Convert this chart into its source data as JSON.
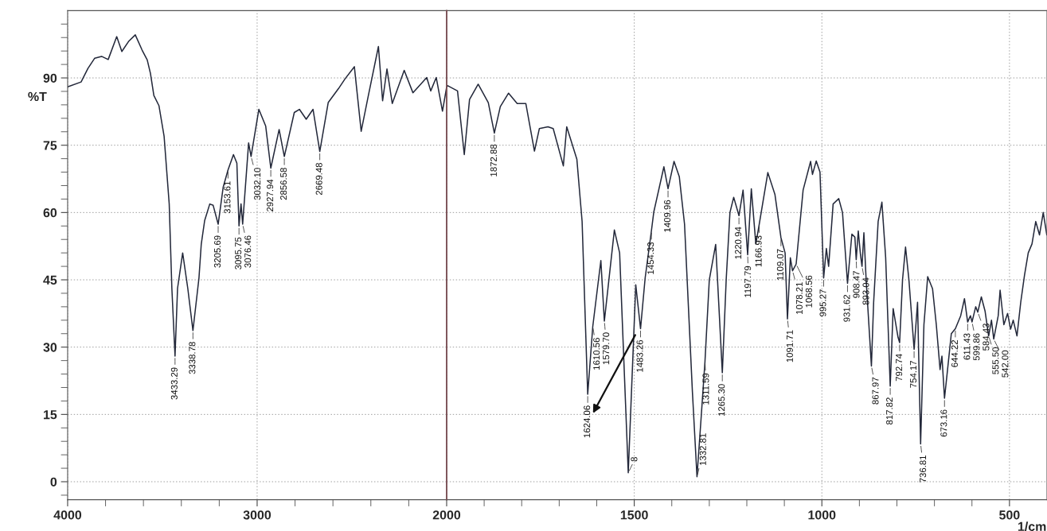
{
  "chart_data": [
    {
      "type": "line",
      "ylabel": "%T",
      "xlim": [
        4000,
        2000
      ],
      "ylim": [
        -4,
        105
      ],
      "xticks": [
        4000,
        {
          "value": 3800,
          "label": null
        },
        {
          "value": 3600,
          "label": null
        },
        {
          "value": 3400,
          "label": null
        },
        {
          "value": 3200,
          "label": null
        },
        3000,
        {
          "value": 2800,
          "label": null
        },
        {
          "value": 2600,
          "label": null
        },
        {
          "value": 2400,
          "label": null
        },
        {
          "value": 2200,
          "label": null
        }
      ],
      "yticks": [
        {
          "value": -3,
          "label": null
        },
        0,
        {
          "value": 3,
          "label": null
        },
        {
          "value": 6,
          "label": null
        },
        {
          "value": 9,
          "label": null
        },
        {
          "value": 12,
          "label": null
        },
        15,
        {
          "value": 18,
          "label": null
        },
        {
          "value": 21,
          "label": null
        },
        {
          "value": 24,
          "label": null
        },
        {
          "value": 27,
          "label": null
        },
        30,
        {
          "value": 33,
          "label": null
        },
        {
          "value": 36,
          "label": null
        },
        {
          "value": 39,
          "label": null
        },
        {
          "value": 42,
          "label": null
        },
        45,
        {
          "value": 48,
          "label": null
        },
        {
          "value": 51,
          "label": null
        },
        {
          "value": 54,
          "label": null
        },
        {
          "value": 57,
          "label": null
        },
        60,
        {
          "value": 63,
          "label": null
        },
        {
          "value": 66,
          "label": null
        },
        {
          "value": 69,
          "label": null
        },
        {
          "value": 72,
          "label": null
        },
        75,
        {
          "value": 78,
          "label": null
        },
        {
          "value": 81,
          "label": null
        },
        {
          "value": 84,
          "label": null
        },
        {
          "value": 87,
          "label": null
        },
        90,
        {
          "value": 93,
          "label": null
        },
        {
          "value": 96,
          "label": null
        },
        {
          "value": 99,
          "label": null
        },
        {
          "value": 102,
          "label": null
        }
      ],
      "grid": true,
      "line_style": "solid",
      "series": [
        {
          "color": "#23283a",
          "x": [
            4000,
            3929,
            3893,
            3857,
            3821,
            3786,
            3741,
            3714,
            3679,
            3643,
            3607,
            3580,
            3563,
            3545,
            3518,
            3491,
            3464,
            3450,
            3433.29,
            3420,
            3393,
            3366,
            3338.78,
            3307,
            3295,
            3277,
            3250,
            3232,
            3205.69,
            3179,
            3153.61,
            3125,
            3107,
            3095.75,
            3085,
            3076.46,
            3045,
            3032.1,
            2991,
            2955,
            2927.94,
            2884,
            2856.58,
            2804,
            2777,
            2741,
            2705,
            2669.48,
            2625,
            2571,
            2536,
            2487,
            2451,
            2415,
            2360,
            2338,
            2315,
            2287,
            2224,
            2178,
            2105,
            2084,
            2055,
            2022,
            2000
          ],
          "values": [
            88.0,
            89.1,
            92.1,
            94.4,
            94.8,
            94.1,
            99.2,
            95.9,
            98.1,
            99.6,
            96.2,
            94.0,
            91.0,
            86.1,
            83.8,
            77.0,
            61.9,
            43.1,
            28.0,
            43.1,
            51.0,
            43.1,
            33.7,
            45.4,
            52.9,
            58.2,
            61.9,
            61.6,
            57.4,
            65.7,
            69.5,
            72.9,
            71.0,
            57.0,
            61.9,
            57.4,
            75.5,
            72.5,
            83.0,
            79.3,
            69.9,
            78.5,
            72.5,
            82.3,
            83.0,
            80.8,
            83.0,
            73.6,
            84.5,
            87.6,
            89.8,
            92.5,
            78.1,
            85.7,
            97.0,
            84.9,
            92.0,
            84.3,
            91.7,
            86.7,
            90.1,
            87.1,
            90.1,
            82.6,
            88.0
          ]
        }
      ],
      "annotations": [
        {
          "text": "3433.29",
          "x": 3433.29,
          "y": 28.0
        },
        {
          "text": "3338.78",
          "x": 3338.78,
          "y": 33.7
        },
        {
          "text": "3205.69",
          "x": 3205.69,
          "y": 57.4
        },
        {
          "text": "3153.61",
          "x": 3153.61,
          "y": 69.5
        },
        {
          "text": "3095.75",
          "x": 3095.75,
          "y": 57.0
        },
        {
          "text": "3076.46",
          "x": 3076.46,
          "y": 57.4
        },
        {
          "text": "3032.10",
          "x": 3032.1,
          "y": 72.5
        },
        {
          "text": "2927.94",
          "x": 2927.94,
          "y": 69.9
        },
        {
          "text": "2856.58",
          "x": 2856.58,
          "y": 72.5
        },
        {
          "text": "2669.48",
          "x": 2669.48,
          "y": 73.6
        }
      ]
    },
    {
      "type": "line",
      "xlabel": "1/cm",
      "xlim": [
        2000,
        400
      ],
      "ylim": [
        -4,
        105
      ],
      "tick_labels": "x",
      "xticks": [
        2000,
        {
          "value": 1900,
          "label": null
        },
        {
          "value": 1800,
          "label": null
        },
        {
          "value": 1700,
          "label": null
        },
        {
          "value": 1600,
          "label": null
        },
        1500,
        {
          "value": 1400,
          "label": null
        },
        {
          "value": 1300,
          "label": null
        },
        {
          "value": 1200,
          "label": null
        },
        {
          "value": 1100,
          "label": null
        },
        1000,
        {
          "value": 900,
          "label": null
        },
        {
          "value": 800,
          "label": null
        },
        {
          "value": 700,
          "label": null
        },
        {
          "value": 600,
          "label": null
        },
        500
      ],
      "yticks": [
        0,
        15,
        30,
        45,
        60,
        75,
        90
      ],
      "grid": true,
      "line_style": "solid",
      "ref_lines": [
        {
          "axis": "x",
          "value": 2000,
          "color": "#7a4a50"
        }
      ],
      "series": [
        {
          "color": "#23283a",
          "x": [
            2000,
            1998,
            1971,
            1953,
            1939,
            1916,
            1889,
            1872.88,
            1857,
            1835,
            1812,
            1789,
            1766,
            1753,
            1730,
            1716,
            1689,
            1680,
            1653,
            1639,
            1624.06,
            1610.56,
            1589,
            1579.7,
            1553,
            1539,
            1516,
            1496,
            1483.26,
            1471,
            1454.33,
            1448,
            1421,
            1409.96,
            1394,
            1380,
            1366,
            1345,
            1332.81,
            1322,
            1311.59,
            1300,
            1283,
            1275,
            1265.3,
            1255,
            1245,
            1235,
            1220.94,
            1210,
            1197.79,
            1188,
            1176,
            1166.93,
            1144,
            1125,
            1109.07,
            1098,
            1091.71,
            1084,
            1078.21,
            1068.56,
            1050,
            1030,
            1025,
            1015,
            1005,
            995.27,
            988,
            982,
            970,
            955,
            945,
            931.62,
            920,
            912,
            908.47,
            903,
            897,
            893.04,
            888,
            882,
            867.97,
            862,
            850,
            840,
            830,
            817.82,
            810,
            797,
            792.74,
            785,
            777,
            768,
            754.17,
            745,
            736.81,
            728,
            718,
            705,
            695,
            685,
            680,
            673.16,
            665,
            655,
            644.22,
            630,
            620,
            611.43,
            604,
            599.86,
            590,
            584.43,
            575,
            565,
            555.5,
            548,
            542.0,
            530,
            525,
            515,
            505,
            497,
            490,
            480,
            470,
            460,
            450,
            440,
            430,
            420,
            410,
            400.5
          ],
          "values": [
            88.0,
            88.3,
            87.1,
            72.9,
            85.2,
            88.6,
            84.5,
            77.7,
            83.6,
            86.6,
            84.3,
            84.3,
            73.7,
            78.7,
            79.1,
            78.7,
            70.4,
            79.1,
            71.9,
            58.0,
            19.5,
            34.6,
            49.3,
            35.8,
            56.1,
            51.0,
            2.0,
            43.9,
            34.1,
            45.4,
            55.9,
            60.1,
            70.2,
            65.3,
            71.4,
            68.0,
            57.4,
            20.0,
            1.1,
            14.0,
            26.7,
            45.0,
            52.9,
            40.0,
            24.3,
            45.0,
            60.0,
            63.4,
            59.3,
            65.0,
            50.6,
            65.3,
            53.0,
            57.4,
            68.9,
            64.0,
            54.4,
            51.0,
            36.3,
            49.9,
            47.0,
            48.5,
            65.0,
            71.4,
            68.5,
            71.5,
            69.0,
            45.4,
            52.0,
            48.0,
            61.9,
            63.1,
            60.0,
            44.2,
            55.2,
            54.5,
            49.5,
            55.9,
            50.5,
            48.0,
            55.5,
            45.0,
            25.8,
            40.0,
            58.0,
            62.3,
            50.0,
            21.3,
            38.6,
            32.2,
            31.0,
            45.0,
            52.3,
            45.0,
            29.5,
            40.0,
            8.4,
            35.0,
            45.7,
            43.0,
            35.0,
            25.0,
            28.0,
            18.6,
            25.0,
            33.0,
            34.1,
            37.0,
            40.8,
            35.6,
            37.0,
            35.6,
            39.0,
            37.8,
            41.2,
            38.0,
            32.5,
            36.0,
            31.8,
            37.0,
            42.7,
            35.0,
            37.5,
            34.0,
            36.0,
            32.5,
            40.0,
            46.0,
            51.0,
            53.0,
            58.0,
            55.0,
            60.0,
            55.0
          ]
        }
      ],
      "annotations": [
        {
          "text": "1872.88",
          "x": 1872.88,
          "y": 77.7
        },
        {
          "text": "1624.06",
          "x": 1624.06,
          "y": 19.5
        },
        {
          "text": "1610.56",
          "x": 1610.56,
          "y": 34.6
        },
        {
          "text": "1579.70",
          "x": 1579.7,
          "y": 35.8
        },
        {
          "text": "8",
          "x": 1516,
          "y": 2.0
        },
        {
          "text": "1483.26",
          "x": 1483.26,
          "y": 34.1
        },
        {
          "text": "1454.33",
          "x": 1454.33,
          "y": 55.9
        },
        {
          "text": "1409.96",
          "x": 1409.96,
          "y": 65.3
        },
        {
          "text": "1332.81",
          "x": 1332.81,
          "y": 1.1
        },
        {
          "text": "1311.59",
          "x": 1311.59,
          "y": 26.7
        },
        {
          "text": "1265.30",
          "x": 1265.3,
          "y": 24.3
        },
        {
          "text": "1220.94",
          "x": 1220.94,
          "y": 59.3
        },
        {
          "text": "1197.79",
          "x": 1197.79,
          "y": 50.6
        },
        {
          "text": "1166.93",
          "x": 1166.93,
          "y": 57.4
        },
        {
          "text": "1109.07",
          "x": 1109.07,
          "y": 54.4
        },
        {
          "text": "1091.71",
          "x": 1091.71,
          "y": 36.3
        },
        {
          "text": "1078.21",
          "x": 1078.21,
          "y": 47.0
        },
        {
          "text": "1068.56",
          "x": 1068.56,
          "y": 48.5
        },
        {
          "text": "995.27",
          "x": 995.27,
          "y": 45.4
        },
        {
          "text": "931.62",
          "x": 931.62,
          "y": 44.2
        },
        {
          "text": "908.47",
          "x": 908.47,
          "y": 49.5
        },
        {
          "text": "893.04",
          "x": 893.04,
          "y": 48.0
        },
        {
          "text": "867.97",
          "x": 867.97,
          "y": 25.8
        },
        {
          "text": "817.82",
          "x": 817.82,
          "y": 21.3
        },
        {
          "text": "792.74",
          "x": 792.74,
          "y": 31.0
        },
        {
          "text": "754.17",
          "x": 754.17,
          "y": 29.5
        },
        {
          "text": "736.81",
          "x": 736.81,
          "y": 8.4
        },
        {
          "text": "673.16",
          "x": 673.16,
          "y": 18.6
        },
        {
          "text": "644.22",
          "x": 644.22,
          "y": 34.1
        },
        {
          "text": "611.43",
          "x": 611.43,
          "y": 35.6
        },
        {
          "text": "599.86",
          "x": 599.86,
          "y": 35.6
        },
        {
          "text": "584.43",
          "x": 584.43,
          "y": 37.8
        },
        {
          "text": "555.50",
          "x": 555.5,
          "y": 32.5
        },
        {
          "text": "542.00",
          "x": 542.0,
          "y": 31.8
        }
      ]
    }
  ]
}
